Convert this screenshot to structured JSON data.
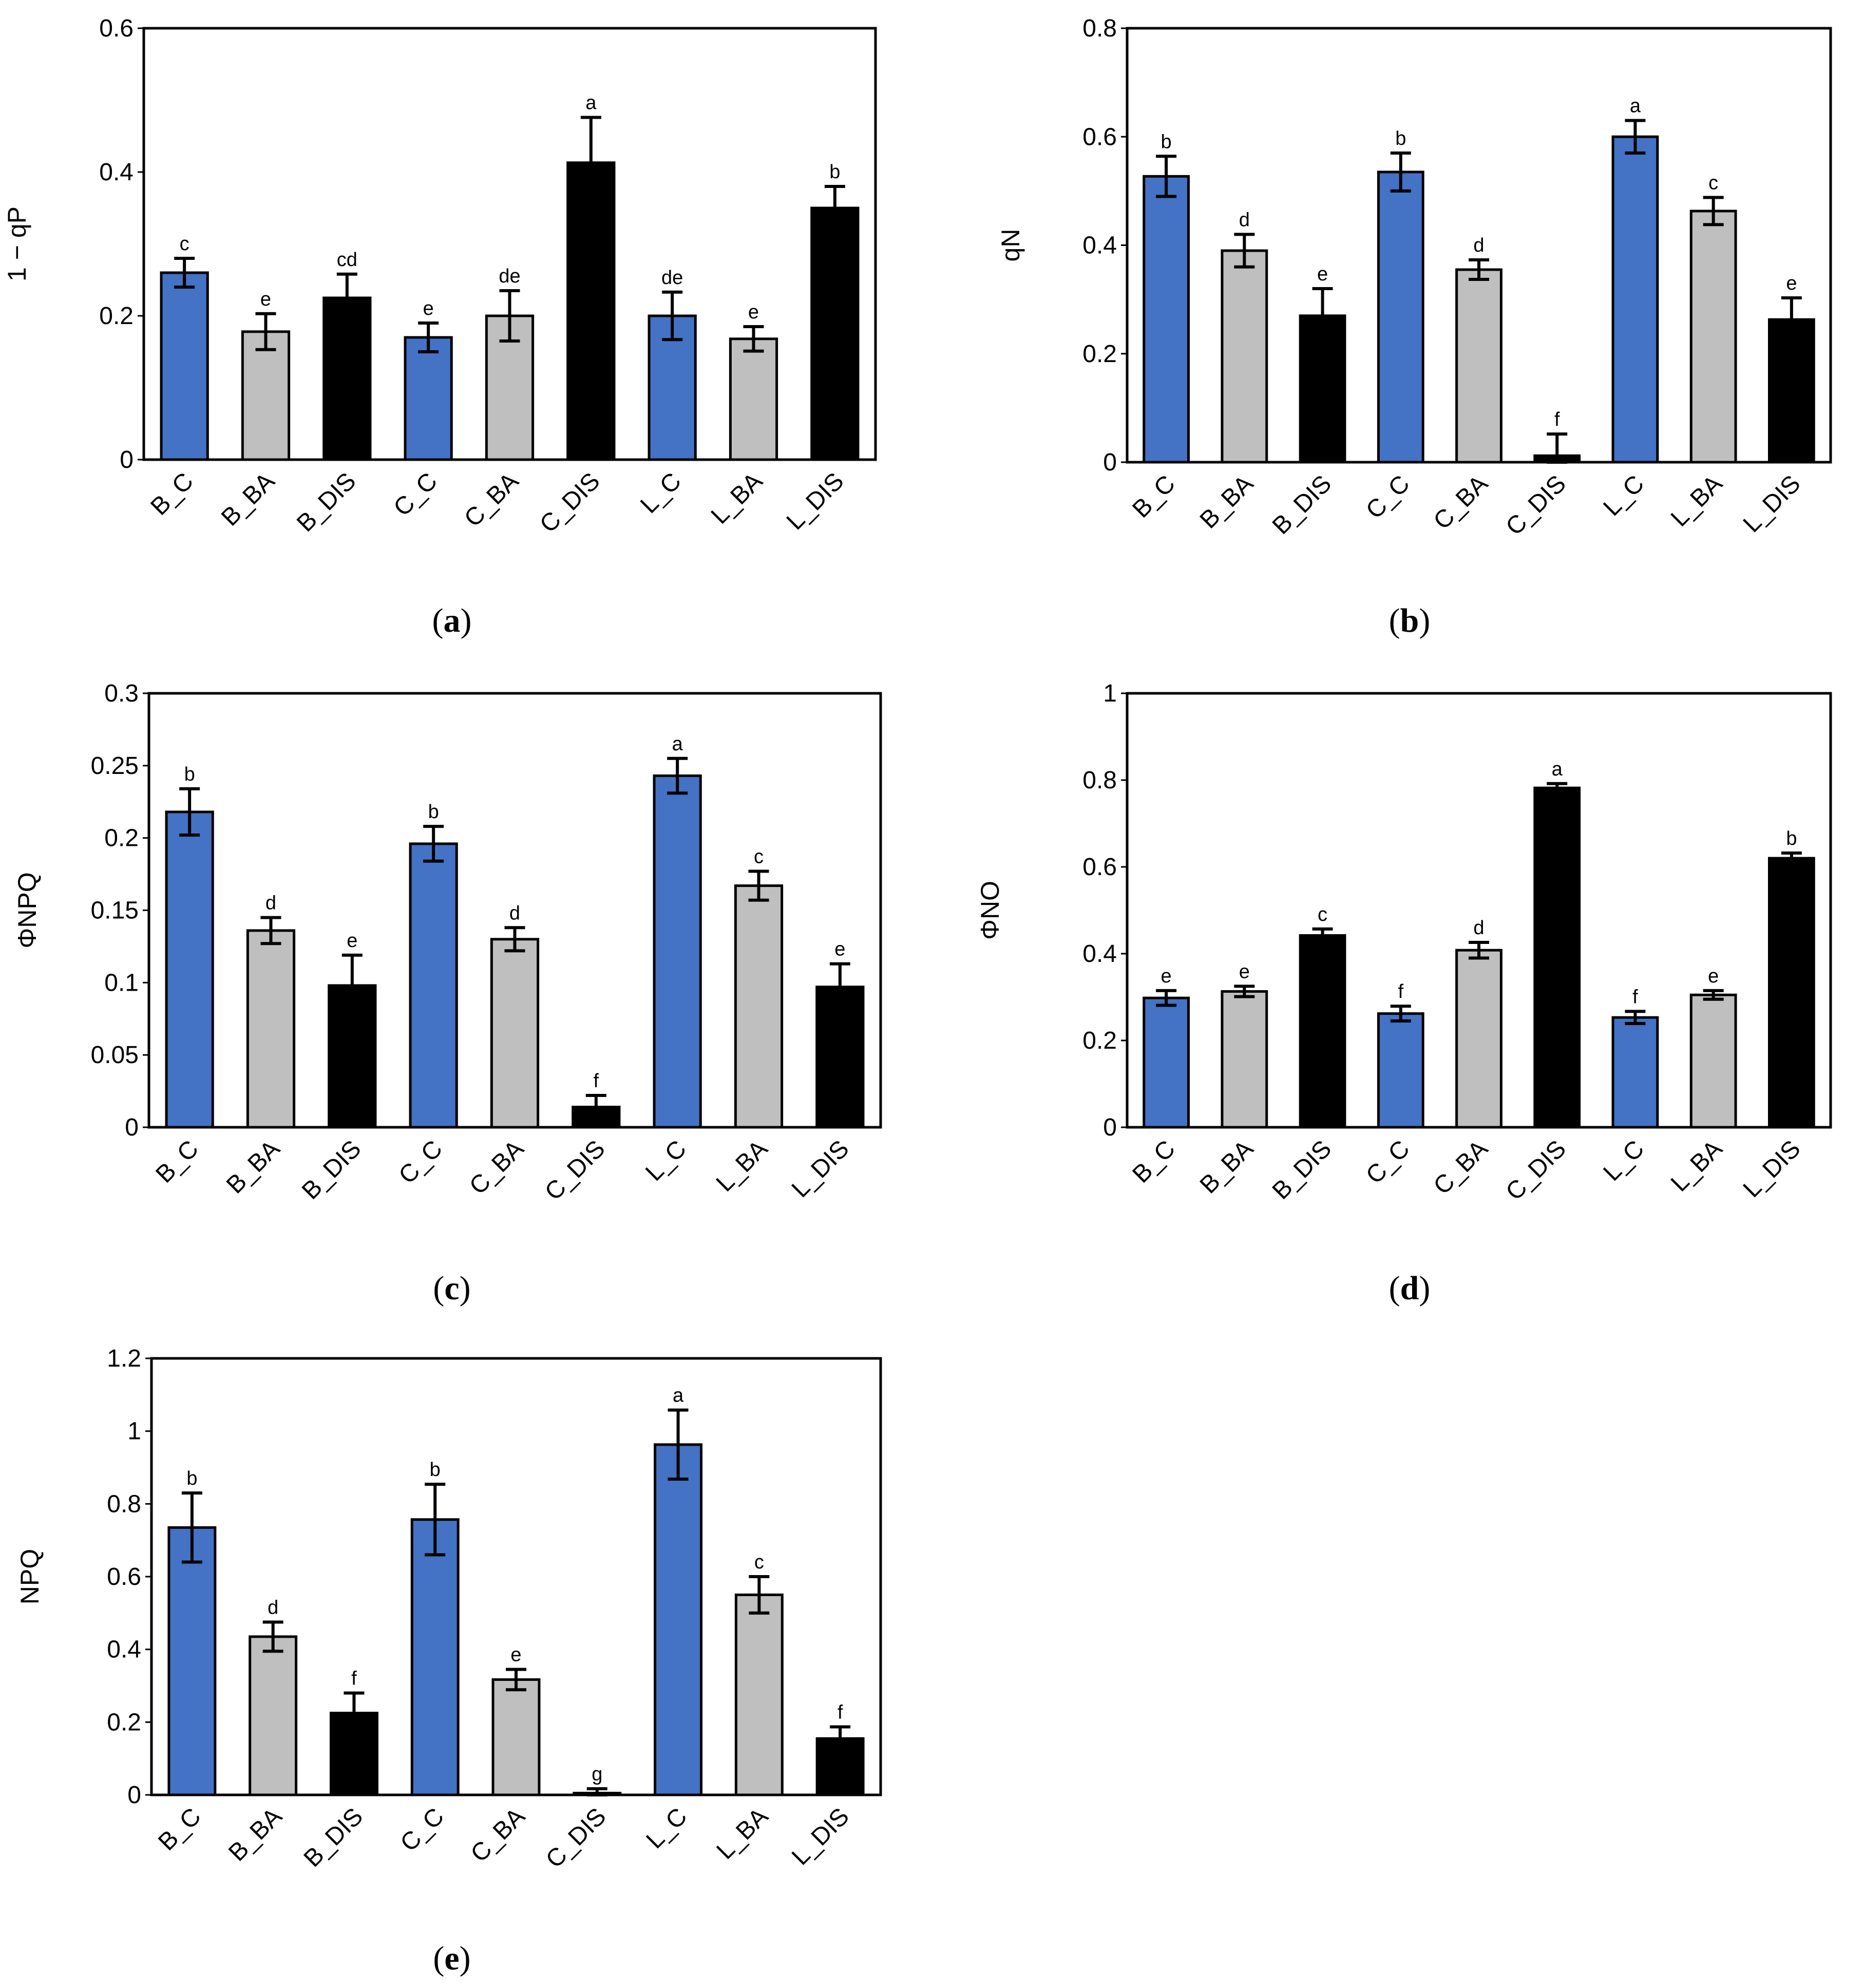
{
  "figure": {
    "colors": {
      "blue": "#4472C4",
      "gray": "#BFBFBF",
      "black": "#000000"
    }
  },
  "chart_data": [
    {
      "type": "bar",
      "panel": "(a)",
      "panel_letter": "a",
      "ylabel": "1 − qP",
      "ylim": [
        0,
        0.6
      ],
      "yticks": [
        0,
        0.2,
        0.4,
        0.6
      ],
      "ytick_labels": [
        "0",
        "0.2",
        "0.4",
        "0.6"
      ],
      "categories": [
        "B_C",
        "B_BA",
        "B_DIS",
        "C_C",
        "C_BA",
        "C_DIS",
        "L_C",
        "L_BA",
        "L_DIS"
      ],
      "values": [
        0.26,
        0.178,
        0.225,
        0.17,
        0.2,
        0.413,
        0.2,
        0.168,
        0.35
      ],
      "errors": [
        0.02,
        0.025,
        0.033,
        0.02,
        0.035,
        0.063,
        0.033,
        0.017,
        0.03
      ],
      "letters": [
        "c",
        "e",
        "cd",
        "e",
        "de",
        "a",
        "de",
        "e",
        "b"
      ],
      "bar_colors": [
        "blue",
        "gray",
        "black",
        "blue",
        "gray",
        "black",
        "blue",
        "gray",
        "black"
      ]
    },
    {
      "type": "bar",
      "panel": "(b)",
      "panel_letter": "b",
      "ylabel": "qN",
      "ylim": [
        0,
        0.8
      ],
      "yticks": [
        0,
        0.2,
        0.4,
        0.6,
        0.8
      ],
      "ytick_labels": [
        "0",
        "0.2",
        "0.4",
        "0.6",
        "0.8"
      ],
      "categories": [
        "B_C",
        "B_BA",
        "B_DIS",
        "C_C",
        "C_BA",
        "C_DIS",
        "L_C",
        "L_BA",
        "L_DIS"
      ],
      "values": [
        0.527,
        0.39,
        0.27,
        0.535,
        0.355,
        0.012,
        0.6,
        0.463,
        0.263
      ],
      "errors": [
        0.037,
        0.03,
        0.05,
        0.035,
        0.018,
        0.04,
        0.03,
        0.025,
        0.04
      ],
      "letters": [
        "b",
        "d",
        "e",
        "b",
        "d",
        "f",
        "a",
        "c",
        "e"
      ],
      "bar_colors": [
        "blue",
        "gray",
        "black",
        "blue",
        "gray",
        "black",
        "blue",
        "gray",
        "black"
      ]
    },
    {
      "type": "bar",
      "panel": "(c)",
      "panel_letter": "c",
      "ylabel": "ΦNPQ",
      "ylim": [
        0,
        0.3
      ],
      "yticks": [
        0,
        0.05,
        0.1,
        0.15,
        0.2,
        0.25,
        0.3
      ],
      "ytick_labels": [
        "0",
        "0.05",
        "0.1",
        "0.15",
        "0.2",
        "0.25",
        "0.3"
      ],
      "categories": [
        "B_C",
        "B_BA",
        "B_DIS",
        "C_C",
        "C_BA",
        "C_DIS",
        "L_C",
        "L_BA",
        "L_DIS"
      ],
      "values": [
        0.218,
        0.136,
        0.098,
        0.196,
        0.13,
        0.014,
        0.243,
        0.167,
        0.097
      ],
      "errors": [
        0.016,
        0.009,
        0.021,
        0.012,
        0.008,
        0.008,
        0.012,
        0.01,
        0.016
      ],
      "letters": [
        "b",
        "d",
        "e",
        "b",
        "d",
        "f",
        "a",
        "c",
        "e"
      ],
      "bar_colors": [
        "blue",
        "gray",
        "black",
        "blue",
        "gray",
        "black",
        "blue",
        "gray",
        "black"
      ]
    },
    {
      "type": "bar",
      "panel": "(d)",
      "panel_letter": "d",
      "ylabel": "ΦNO",
      "ylim": [
        0,
        1
      ],
      "yticks": [
        0,
        0.2,
        0.4,
        0.6,
        0.8,
        1
      ],
      "ytick_labels": [
        "0",
        "0.2",
        "0.4",
        "0.6",
        "0.8",
        "1"
      ],
      "categories": [
        "B_C",
        "B_BA",
        "B_DIS",
        "C_C",
        "C_BA",
        "C_DIS",
        "L_C",
        "L_BA",
        "L_DIS"
      ],
      "values": [
        0.298,
        0.313,
        0.442,
        0.262,
        0.408,
        0.782,
        0.253,
        0.305,
        0.62
      ],
      "errors": [
        0.017,
        0.012,
        0.015,
        0.017,
        0.018,
        0.01,
        0.014,
        0.01,
        0.012
      ],
      "letters": [
        "e",
        "e",
        "c",
        "f",
        "d",
        "a",
        "f",
        "e",
        "b"
      ],
      "bar_colors": [
        "blue",
        "gray",
        "black",
        "blue",
        "gray",
        "black",
        "blue",
        "gray",
        "black"
      ]
    },
    {
      "type": "bar",
      "panel": "(e)",
      "panel_letter": "e",
      "ylabel": "NPQ",
      "ylim": [
        0,
        1.2
      ],
      "yticks": [
        0,
        0.2,
        0.4,
        0.6,
        0.8,
        1,
        1.2
      ],
      "ytick_labels": [
        "0",
        "0.2",
        "0.4",
        "0.6",
        "0.8",
        "1",
        "1.2"
      ],
      "categories": [
        "B_C",
        "B_BA",
        "B_DIS",
        "C_C",
        "C_BA",
        "C_DIS",
        "L_C",
        "L_BA",
        "L_DIS"
      ],
      "values": [
        0.735,
        0.435,
        0.225,
        0.757,
        0.317,
        0.005,
        0.963,
        0.55,
        0.155
      ],
      "errors": [
        0.095,
        0.04,
        0.055,
        0.097,
        0.028,
        0.012,
        0.095,
        0.05,
        0.032
      ],
      "letters": [
        "b",
        "d",
        "f",
        "b",
        "e",
        "g",
        "a",
        "c",
        "f"
      ],
      "bar_colors": [
        "blue",
        "gray",
        "black",
        "blue",
        "gray",
        "black",
        "blue",
        "gray",
        "black"
      ]
    }
  ]
}
